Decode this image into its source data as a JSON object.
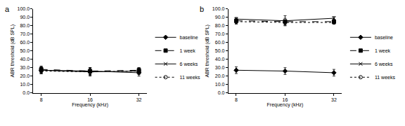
{
  "chart_data": [
    {
      "type": "line",
      "title": "a",
      "x_label": "Frequency (kHz)",
      "y_label": "ABR threshold (dB SPL)",
      "categories": [
        "8",
        "16",
        "32"
      ],
      "series": [
        {
          "name": "baseline",
          "color": "#000000",
          "line_style": "solid",
          "marker": "diamond",
          "values": [
            27,
            26,
            24
          ],
          "errors": [
            4,
            4,
            4
          ]
        },
        {
          "name": "1 week",
          "color": "#000000",
          "line_style": "dash",
          "marker": "square",
          "values": [
            28,
            26,
            27
          ],
          "errors": [
            4,
            4,
            3
          ]
        },
        {
          "name": "6 weeks",
          "color": "#000000",
          "line_style": "solid",
          "marker": "x",
          "values": [
            27,
            25,
            26
          ],
          "errors": [
            4,
            5,
            4
          ]
        },
        {
          "name": "11 weeks",
          "color": "#000000",
          "line_style": "dot",
          "marker": "circle",
          "values": [
            26,
            25,
            26
          ],
          "errors": [
            3,
            4,
            3
          ]
        }
      ],
      "ylim": [
        0,
        100
      ],
      "yticks": [
        {
          "value": 0,
          "label": "0.0"
        },
        {
          "value": 10,
          "label": "10.0"
        },
        {
          "value": 20,
          "label": "20.0"
        },
        {
          "value": 30,
          "label": "30.0"
        },
        {
          "value": 40,
          "label": "40.0"
        },
        {
          "value": 50,
          "label": "50.0"
        },
        {
          "value": 60,
          "label": "60.0"
        },
        {
          "value": 70,
          "label": "70.0"
        },
        {
          "value": 80,
          "label": "80.0"
        },
        {
          "value": 90,
          "label": "90.0"
        },
        {
          "value": 100,
          "label": "100.0"
        }
      ],
      "grid": false,
      "legend": "right"
    },
    {
      "type": "line",
      "title": "b",
      "x_label": "Frequency (kHz)",
      "y_label": "ABR threshold (dB SPL)",
      "categories": [
        "8",
        "16",
        "32"
      ],
      "series": [
        {
          "name": "baseline",
          "color": "#000000",
          "line_style": "solid",
          "marker": "diamond",
          "values": [
            27,
            26,
            24
          ],
          "errors": [
            4,
            4,
            4
          ]
        },
        {
          "name": "1 week",
          "color": "#000000",
          "line_style": "dash",
          "marker": "square",
          "values": [
            86,
            85,
            85
          ],
          "errors": [
            3,
            4,
            3
          ]
        },
        {
          "name": "6 weeks",
          "color": "#000000",
          "line_style": "solid",
          "marker": "x",
          "values": [
            88,
            86,
            89
          ],
          "errors": [
            2,
            6,
            2
          ]
        },
        {
          "name": "11 weeks",
          "color": "#000000",
          "line_style": "dot",
          "marker": "circle",
          "values": [
            85,
            84,
            84
          ],
          "errors": [
            3,
            3,
            2
          ]
        }
      ],
      "ylim": [
        0,
        100
      ],
      "yticks": [
        {
          "value": 0,
          "label": "0.0"
        },
        {
          "value": 10,
          "label": "10.0"
        },
        {
          "value": 20,
          "label": "20.0"
        },
        {
          "value": 30,
          "label": "30.0"
        },
        {
          "value": 40,
          "label": "40.0"
        },
        {
          "value": 50,
          "label": "50.0"
        },
        {
          "value": 60,
          "label": "60.0"
        },
        {
          "value": 70,
          "label": "70.0"
        },
        {
          "value": 80,
          "label": "80.0"
        },
        {
          "value": 90,
          "label": "90.0"
        },
        {
          "value": 100,
          "label": "100.0"
        }
      ],
      "grid": false,
      "legend": "right"
    }
  ]
}
